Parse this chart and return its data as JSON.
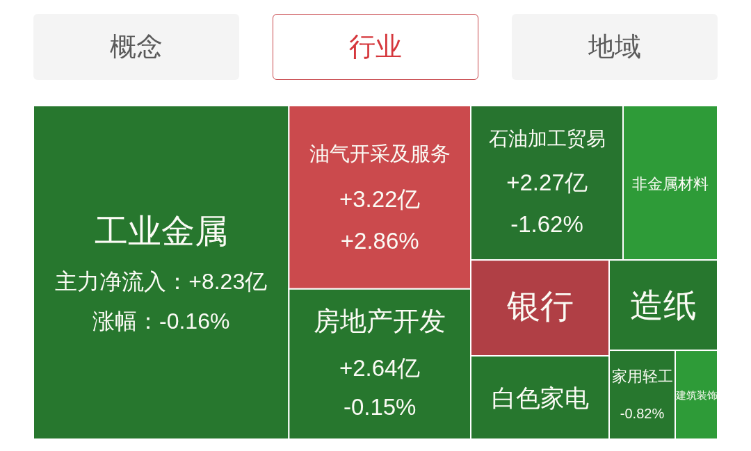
{
  "chart_data": {
    "type": "other",
    "title": "行业",
    "annotations": [
      "概念",
      "地域"
    ],
    "categories": [
      "工业金属",
      "油气开采及服务",
      "房地产开发",
      "石油加工贸易",
      "非金属材料",
      "银行",
      "造纸",
      "白色家电",
      "家用轻工",
      "建筑装饰"
    ],
    "series": [
      {
        "colors": [
          "#27772e",
          "#cb4a4d",
          "#27772e",
          "#27742f",
          "#2e9b38",
          "#b03f45",
          "#27772e",
          "#27772e",
          "#27772e",
          "#2e9b38"
        ],
        "values": [
          8.23,
          3.22,
          2.64,
          2.27,
          null,
          null,
          null,
          null,
          null,
          null
        ],
        "value_labels": [
          "主力净流入：+8.23亿",
          "+3.22亿",
          "+2.64亿",
          "+2.27亿",
          null,
          null,
          null,
          null,
          null,
          null
        ]
      },
      {
        "values": [
          -0.16,
          2.86,
          -0.15,
          -1.62,
          null,
          null,
          null,
          null,
          -0.82,
          null
        ],
        "value_labels": [
          "涨幅：-0.16%",
          "+2.86%",
          "-0.15%",
          "-1.62%",
          null,
          null,
          null,
          null,
          "-0.82%",
          null
        ]
      }
    ]
  }
}
